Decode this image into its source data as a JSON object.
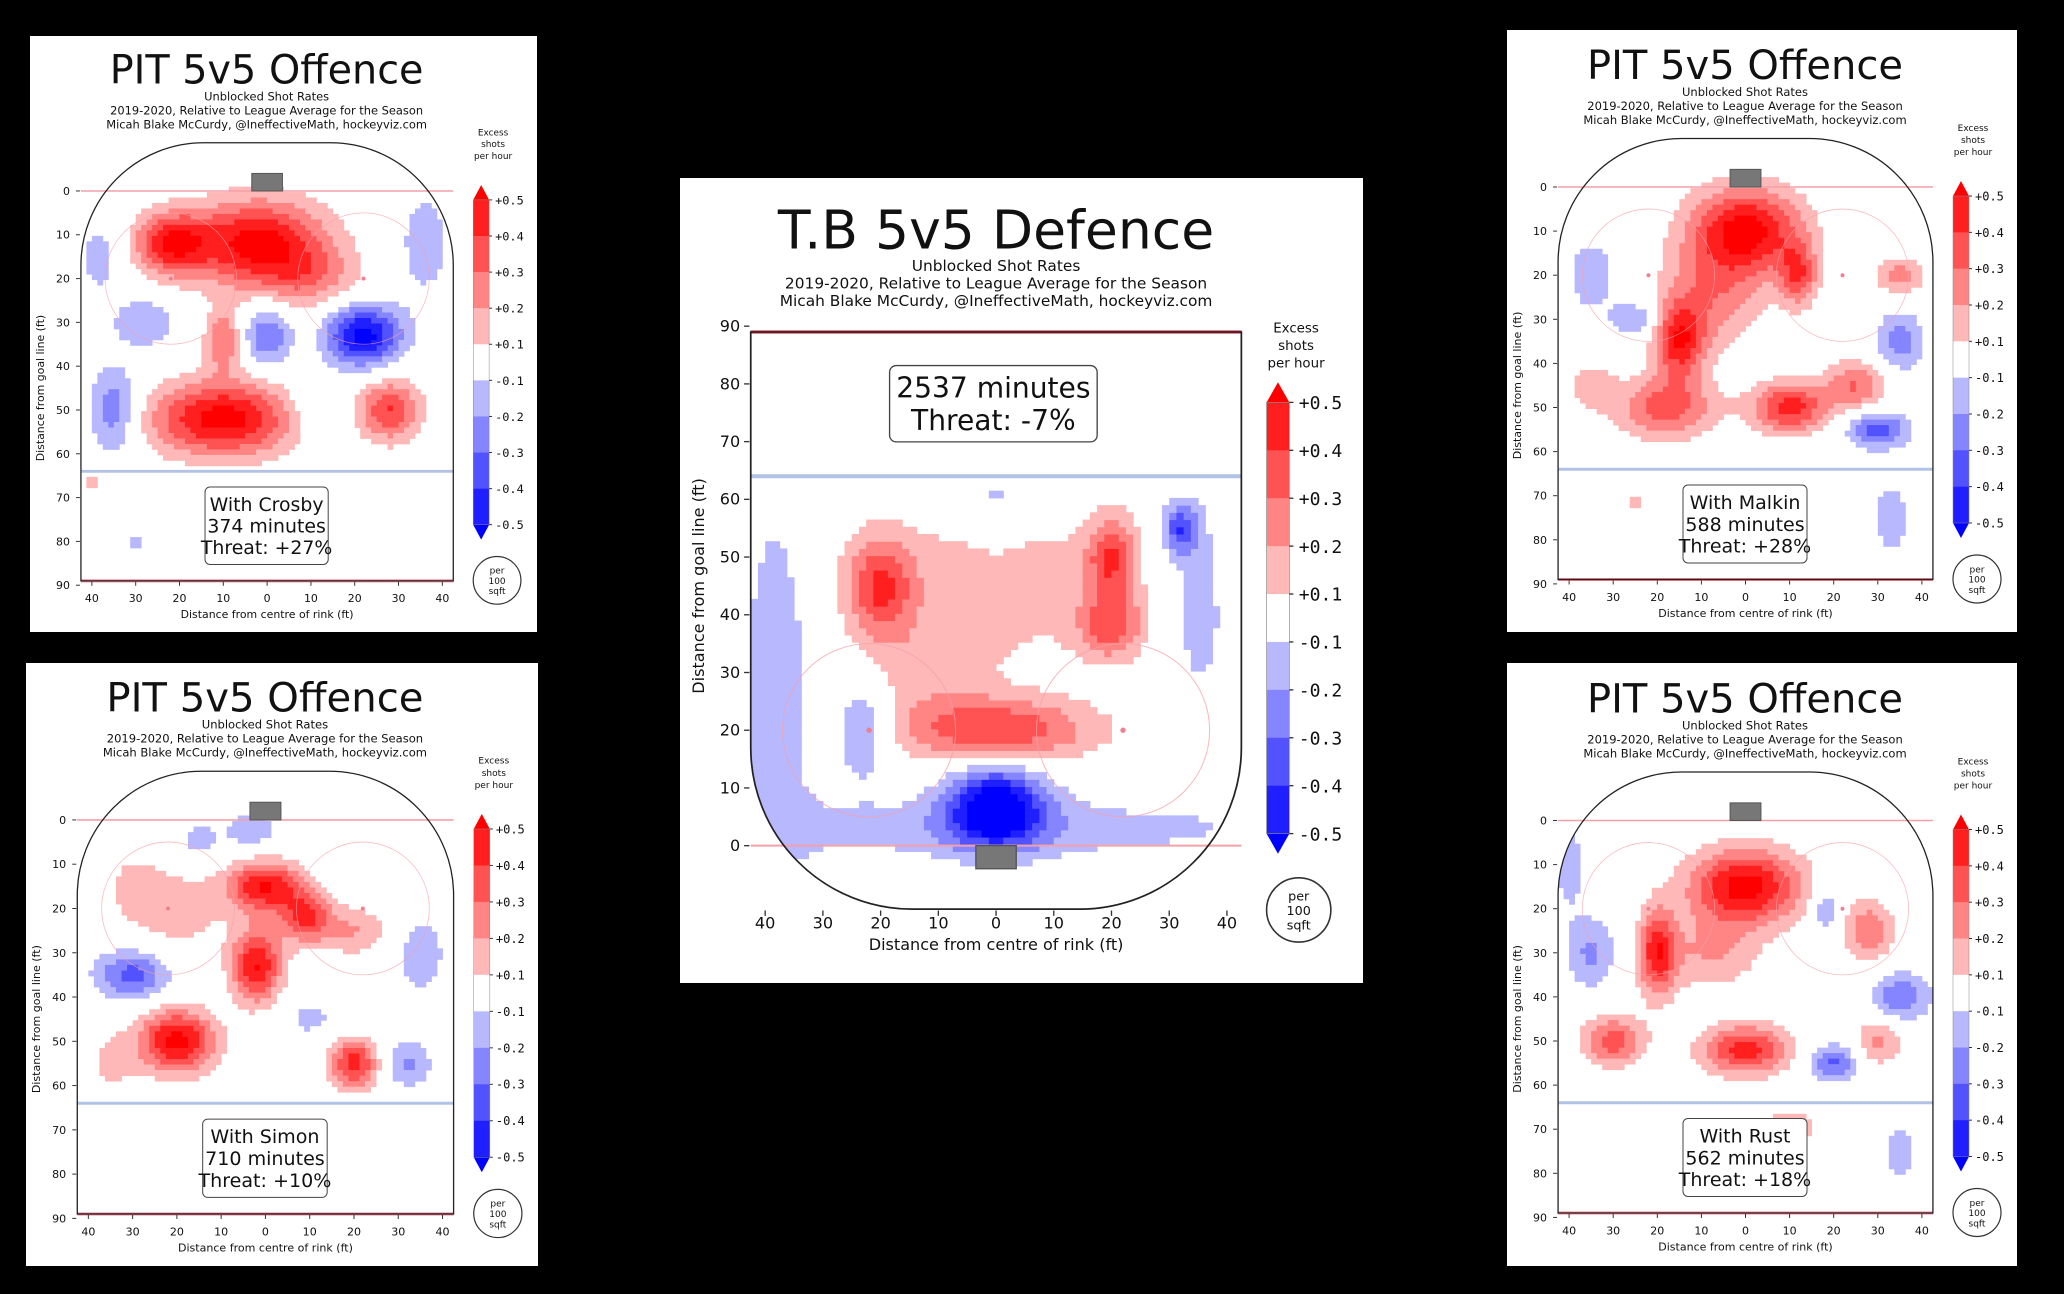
{
  "common": {
    "subtitle": [
      "Unblocked Shot Rates",
      "2019-2020, Relative to League Average for the Season",
      "Micah Blake McCurdy, @IneffectiveMath, hockeyviz.com"
    ],
    "xlabel": "Distance from centre of rink (ft)",
    "ylabel": "Distance from goal line (ft)",
    "x_ticks": [
      "40",
      "30",
      "20",
      "10",
      "0",
      "10",
      "20",
      "30",
      "40"
    ],
    "x_tick_values": [
      -40,
      -30,
      -20,
      -10,
      0,
      10,
      20,
      30,
      40
    ],
    "y_ticks": [
      "0",
      "10",
      "20",
      "30",
      "40",
      "50",
      "60",
      "70",
      "80",
      "90"
    ],
    "y_tick_values": [
      0,
      10,
      20,
      30,
      40,
      50,
      60,
      70,
      80,
      90
    ],
    "colorbar_label": [
      "Excess",
      "shots",
      "per hour"
    ],
    "colorbar_ticks": [
      "+0.5",
      "+0.4",
      "+0.3",
      "+0.2",
      "+0.1",
      "-0.1",
      "-0.2",
      "-0.3",
      "-0.4",
      "-0.5"
    ],
    "colorbar_colors": [
      "#ff0000",
      "#ff1f1f",
      "#ff5252",
      "#ff8585",
      "#ffb8b8",
      "#ffffff",
      "#b8b8ff",
      "#8585ff",
      "#5252ff",
      "#1f1fff",
      "#0000ff"
    ],
    "per_area": [
      "per",
      "100",
      "sqft"
    ]
  },
  "chart_data": [
    {
      "id": "p-crosby",
      "type": "heatmap",
      "orientation": "offence",
      "title": "PIT 5v5 Offence",
      "annotation": [
        "With Crosby",
        "374 minutes",
        "Threat: +27%"
      ],
      "hotspots": [
        [
          -2,
          12,
          0.55,
          11,
          7
        ],
        [
          -22,
          12,
          0.45,
          6,
          5
        ],
        [
          22,
          33,
          -0.55,
          6,
          5
        ],
        [
          0,
          33,
          -0.3,
          4,
          5
        ],
        [
          -10,
          52,
          0.55,
          12,
          6
        ],
        [
          28,
          50,
          0.4,
          5,
          5
        ],
        [
          -35,
          50,
          -0.3,
          4,
          7
        ],
        [
          -28,
          30,
          -0.2,
          5,
          4
        ],
        [
          36,
          12,
          -0.15,
          5,
          10
        ],
        [
          -10,
          34,
          0.3,
          3,
          5
        ],
        [
          -38,
          15,
          -0.15,
          4,
          7
        ],
        [
          10,
          50,
          -0.12,
          5,
          5
        ],
        [
          -40,
          66,
          0.12,
          3,
          3
        ],
        [
          10,
          20,
          0.2,
          8,
          5
        ],
        [
          -30,
          80,
          -0.12,
          3,
          2
        ],
        [
          20,
          70,
          0.1,
          8,
          4
        ]
      ]
    },
    {
      "id": "p-simon",
      "type": "heatmap",
      "orientation": "offence",
      "title": "PIT 5v5 Offence",
      "annotation": [
        "With Simon",
        "710 minutes",
        "Threat: +10%"
      ],
      "hotspots": [
        [
          0,
          15,
          0.5,
          6,
          4
        ],
        [
          9,
          22,
          0.4,
          4,
          4
        ],
        [
          -2,
          33,
          0.5,
          4,
          6
        ],
        [
          -20,
          50,
          0.55,
          6,
          5
        ],
        [
          20,
          55,
          0.45,
          4,
          4
        ],
        [
          -30,
          35,
          -0.35,
          6,
          4
        ],
        [
          32,
          55,
          -0.22,
          4,
          4
        ],
        [
          -3,
          2,
          -0.2,
          4,
          3
        ],
        [
          -20,
          20,
          0.15,
          8,
          8
        ],
        [
          35,
          30,
          -0.15,
          5,
          8
        ],
        [
          0,
          78,
          0.1,
          12,
          4
        ],
        [
          -15,
          5,
          -0.15,
          4,
          4
        ],
        [
          20,
          25,
          0.2,
          6,
          4
        ],
        [
          -35,
          55,
          0.12,
          4,
          6
        ],
        [
          -30,
          15,
          0.12,
          4,
          5
        ],
        [
          10,
          45,
          -0.12,
          6,
          4
        ]
      ]
    },
    {
      "id": "p-center",
      "type": "heatmap",
      "orientation": "defence",
      "title": "T.B 5v5 Defence",
      "annotation": [
        "2537 minutes",
        "Threat: -7%"
      ],
      "hotspots": [
        [
          0,
          7,
          -0.6,
          6,
          5
        ],
        [
          0,
          20,
          0.4,
          12,
          4
        ],
        [
          -20,
          45,
          0.35,
          4,
          6
        ],
        [
          20,
          50,
          0.35,
          3,
          5
        ],
        [
          20,
          38,
          0.3,
          4,
          4
        ],
        [
          0,
          45,
          0.15,
          20,
          10
        ],
        [
          -38,
          30,
          -0.18,
          5,
          25
        ],
        [
          35,
          42,
          -0.15,
          5,
          15
        ],
        [
          32,
          55,
          -0.35,
          2,
          3
        ],
        [
          -23,
          20,
          -0.25,
          3,
          6
        ],
        [
          0,
          60,
          -0.15,
          3,
          5
        ],
        [
          0,
          3,
          -0.15,
          40,
          4
        ],
        [
          -12,
          30,
          0.12,
          8,
          6
        ]
      ]
    },
    {
      "id": "p-malkin",
      "type": "heatmap",
      "orientation": "offence",
      "title": "PIT 5v5 Offence",
      "annotation": [
        "With Malkin",
        "588 minutes",
        "Threat: +28%"
      ],
      "hotspots": [
        [
          0,
          10,
          0.55,
          9,
          7
        ],
        [
          -15,
          35,
          0.45,
          4,
          6
        ],
        [
          10,
          50,
          0.45,
          6,
          4
        ],
        [
          12,
          20,
          0.35,
          3,
          5
        ],
        [
          -18,
          50,
          0.35,
          8,
          5
        ],
        [
          25,
          45,
          0.3,
          5,
          4
        ],
        [
          30,
          55,
          -0.35,
          5,
          3
        ],
        [
          35,
          35,
          -0.25,
          4,
          5
        ],
        [
          -35,
          20,
          -0.18,
          4,
          6
        ],
        [
          -25,
          30,
          -0.22,
          4,
          3
        ],
        [
          35,
          20,
          0.25,
          4,
          3
        ],
        [
          -25,
          72,
          0.12,
          3,
          2
        ],
        [
          33,
          75,
          -0.18,
          3,
          6
        ],
        [
          -8,
          25,
          0.25,
          8,
          8
        ],
        [
          -35,
          45,
          0.15,
          4,
          4
        ]
      ]
    },
    {
      "id": "p-rust",
      "type": "heatmap",
      "orientation": "offence",
      "title": "PIT 5v5 Offence",
      "annotation": [
        "With Rust",
        "562 minutes",
        "Threat: +18%"
      ],
      "hotspots": [
        [
          0,
          15,
          0.55,
          9,
          6
        ],
        [
          -20,
          30,
          0.45,
          3,
          7
        ],
        [
          -30,
          50,
          0.35,
          5,
          4
        ],
        [
          0,
          52,
          0.45,
          7,
          4
        ],
        [
          28,
          25,
          0.28,
          4,
          5
        ],
        [
          30,
          50,
          0.22,
          4,
          4
        ],
        [
          35,
          40,
          -0.28,
          5,
          4
        ],
        [
          20,
          55,
          -0.32,
          4,
          3
        ],
        [
          -35,
          30,
          -0.22,
          4,
          6
        ],
        [
          18,
          20,
          -0.22,
          2,
          4
        ],
        [
          -40,
          10,
          -0.15,
          3,
          8
        ],
        [
          10,
          70,
          0.15,
          6,
          4
        ],
        [
          35,
          75,
          -0.15,
          3,
          6
        ],
        [
          -8,
          30,
          0.2,
          8,
          6
        ],
        [
          -38,
          80,
          -0.1,
          2,
          2
        ]
      ]
    }
  ]
}
